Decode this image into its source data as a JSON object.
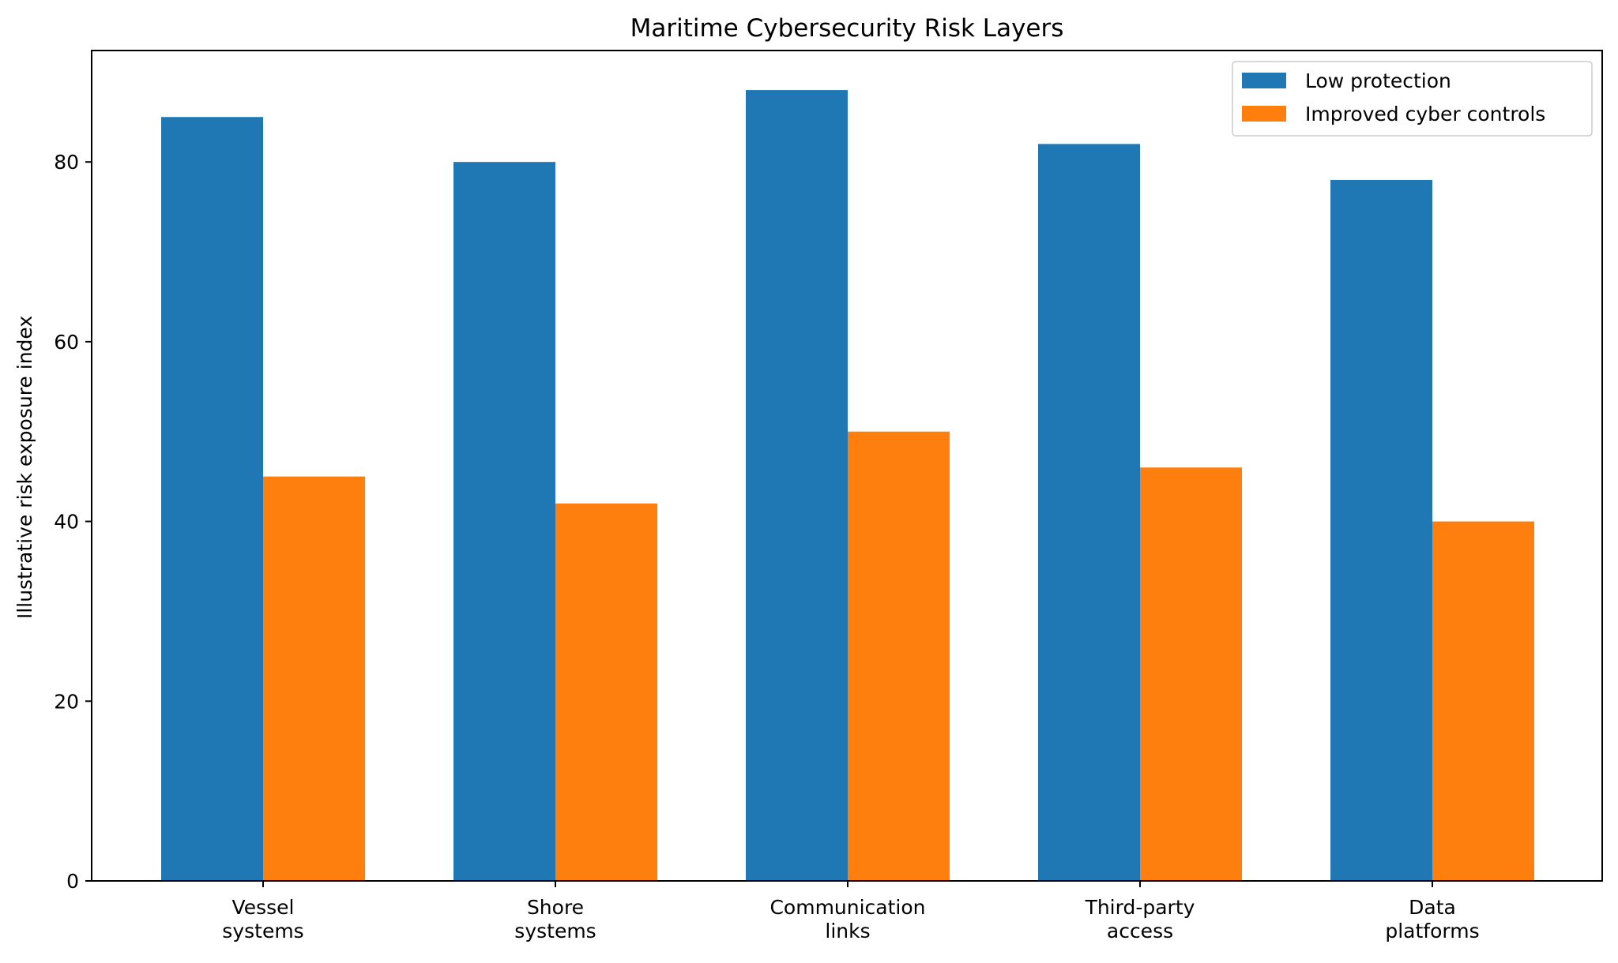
{
  "chart_data": {
    "type": "bar",
    "title": "Maritime Cybersecurity Risk Layers",
    "xlabel": "",
    "ylabel": "Illustrative risk exposure index",
    "categories": [
      [
        "Vessel",
        "systems"
      ],
      [
        "Shore",
        "systems"
      ],
      [
        "Communication",
        "links"
      ],
      [
        "Third-party",
        "access"
      ],
      [
        "Data",
        "platforms"
      ]
    ],
    "series": [
      {
        "name": "Low protection",
        "color": "#1f77b4",
        "values": [
          85,
          80,
          88,
          82,
          78
        ]
      },
      {
        "name": "Improved cyber controls",
        "color": "#ff7f0e",
        "values": [
          45,
          42,
          50,
          46,
          40
        ]
      }
    ],
    "ylim": [
      0,
      92.4
    ],
    "yticks": [
      0,
      20,
      40,
      60,
      80
    ],
    "legend": "top-right",
    "grid": false
  }
}
